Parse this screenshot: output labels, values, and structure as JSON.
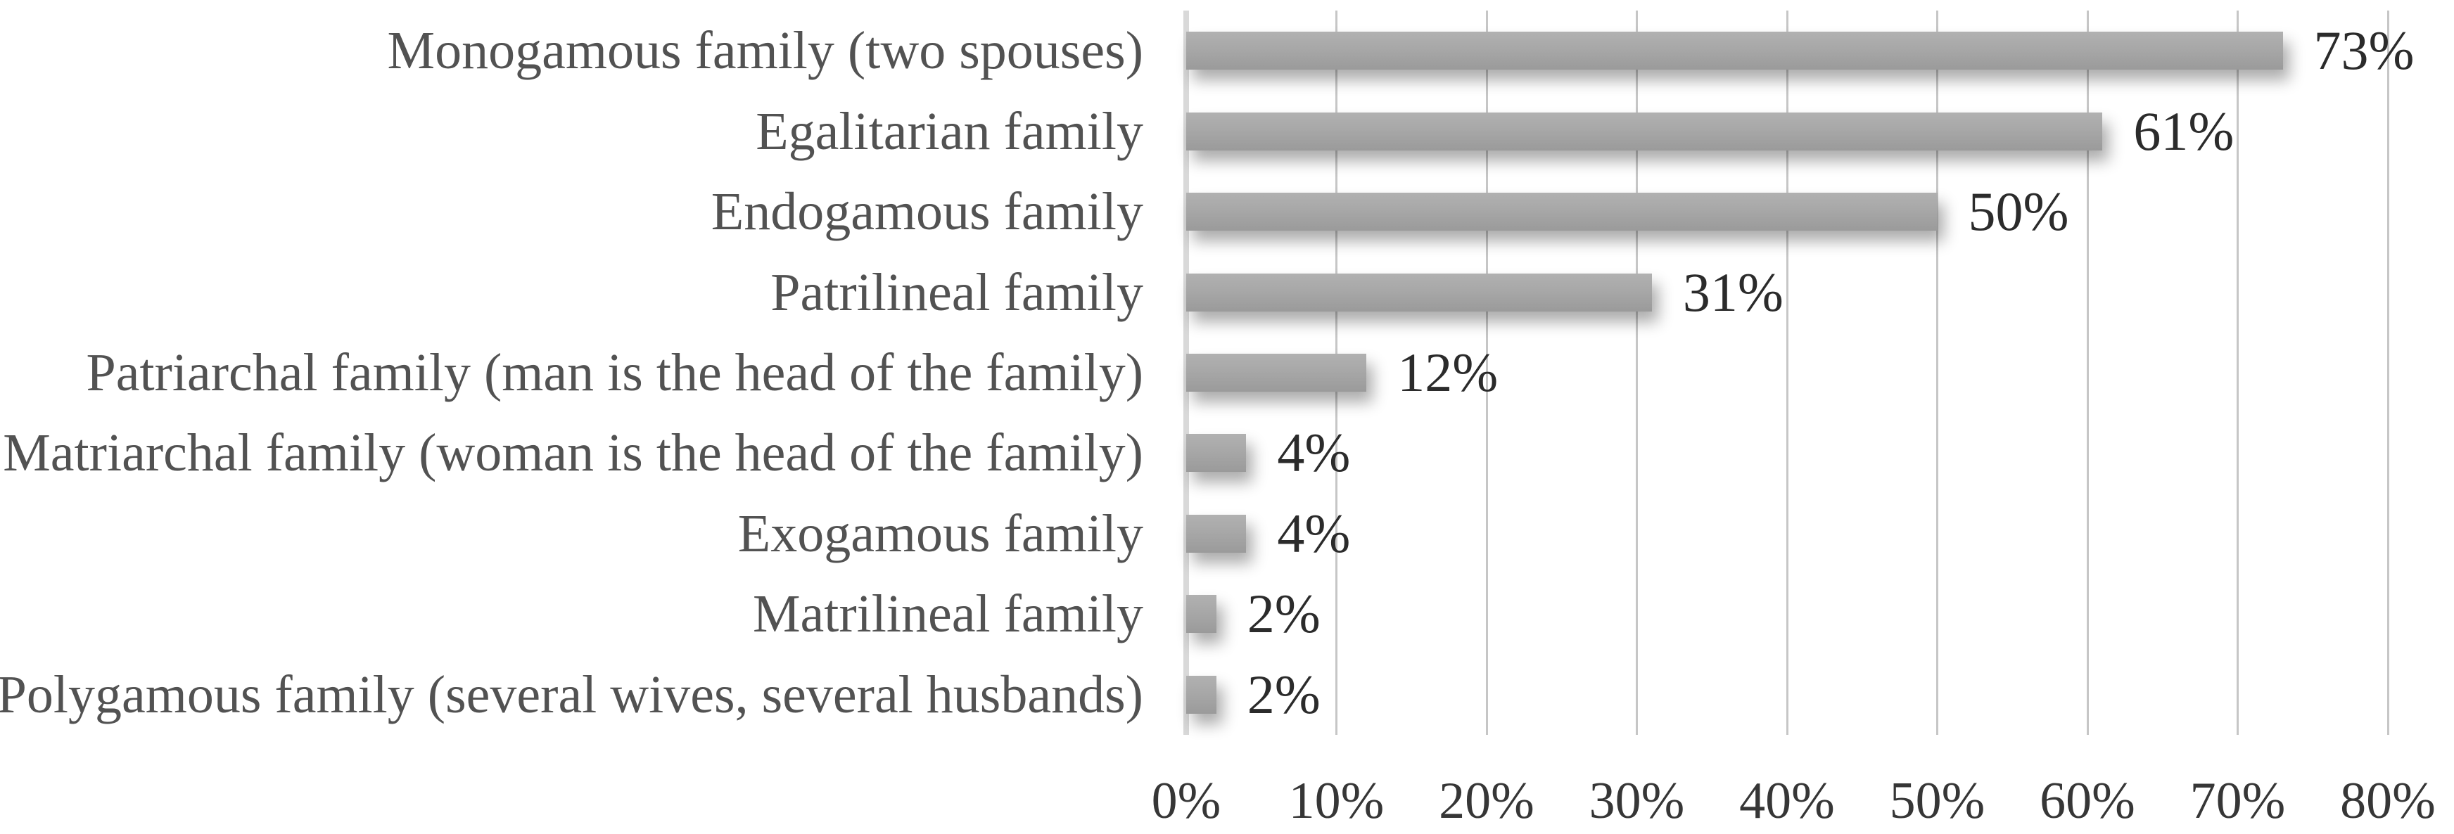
{
  "chart_data": {
    "type": "bar",
    "orientation": "horizontal",
    "title": "",
    "xlabel": "",
    "ylabel": "",
    "categories": [
      "Monogamous family (two spouses)",
      "Egalitarian family",
      "Endogamous family",
      "Patrilineal family",
      "Patriarchal family (man is the head of the family)",
      "Matriarchal family (woman is the head of the family)",
      "Exogamous family",
      "Matrilineal family",
      "Polygamous family (several wives, several husbands)"
    ],
    "values": [
      73,
      61,
      50,
      31,
      12,
      4,
      4,
      2,
      2
    ],
    "data_labels": [
      "73%",
      "61%",
      "50%",
      "31%",
      "12%",
      "4%",
      "4%",
      "2%",
      "2%"
    ],
    "xlim": [
      0,
      80
    ],
    "x_tick_step": 10,
    "x_ticks": [
      "0%",
      "10%",
      "20%",
      "30%",
      "40%",
      "50%",
      "60%",
      "70%",
      "80%"
    ],
    "grid": "vertical",
    "legend": "none",
    "colors": {
      "background": "#ffffff",
      "bar_fill": "#a6a6a6",
      "gridline": "#c6c6c6",
      "axis_line": "#d9d9d9",
      "category_text": "#525252",
      "value_text": "#2b2b2b",
      "tick_text": "#363636"
    }
  }
}
